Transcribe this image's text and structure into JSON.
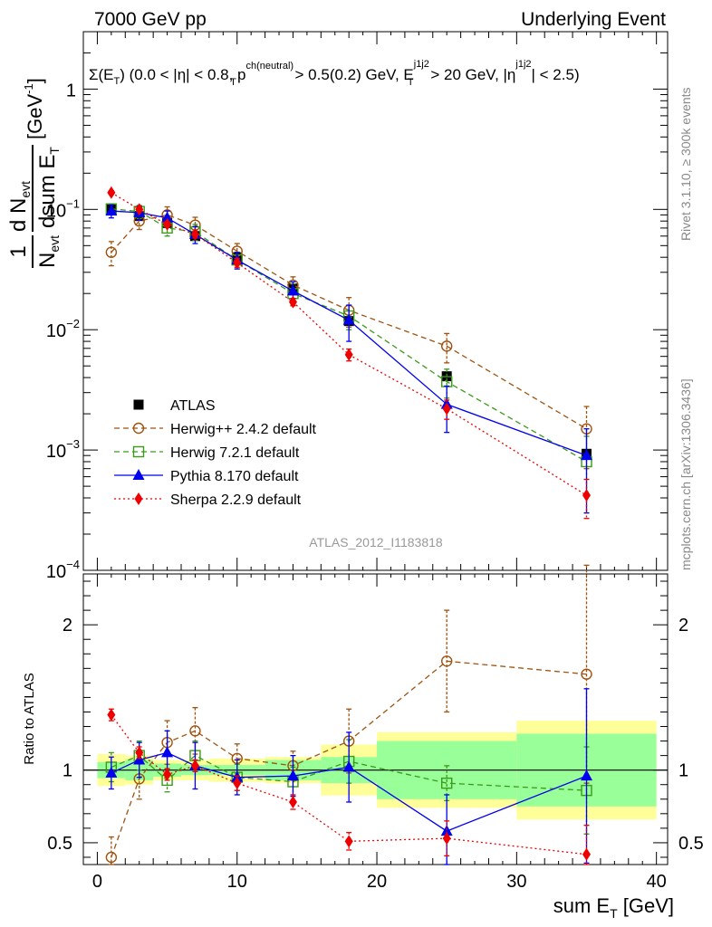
{
  "header": {
    "left": "7000 GeV pp",
    "right": "Underlying Event"
  },
  "side_labels": {
    "top": "Rivet 3.1.10, ≥ 300k events",
    "bottom": "mcplots.cern.ch [arXiv:1306.3436]"
  },
  "plot_label": "ATLAS_2012_I1183818",
  "cut_text": {
    "part1": "Σ(E",
    "sub_T1": "T",
    "part2": ") (0.0 < |η| < 0.8, p",
    "sup_ch": "ch(neutral)",
    "sub_T2": "T",
    "part3": " > 0.5(0.2) GeV, E",
    "sup_j1": "j1j2",
    "sub_T3": "T",
    "part4": " > 20 GeV, |η",
    "sup_j2": "j1j2",
    "part5": "| < 2.5)"
  },
  "axes": {
    "ylabel_num": "d N",
    "ylabel_num_sub": "evt",
    "ylabel_den": "dsum E",
    "ylabel_den_sub": "T",
    "ylabel_pre_num": "1",
    "ylabel_pre_den": "N",
    "ylabel_pre_den_sub": "evt",
    "ylabel_unit": "[GeV",
    "ylabel_unit_sup": "-1",
    "ylabel_unit_close": "]",
    "ratio_ylabel": "Ratio to ATLAS",
    "xlabel_main": "sum E",
    "xlabel_sub": "T",
    "xlabel_unit": " [GeV]"
  },
  "legend": [
    {
      "label": "ATLAS",
      "key": "atlas"
    },
    {
      "label": "Herwig++ 2.4.2 default",
      "key": "herwigpp"
    },
    {
      "label": "Herwig 7.2.1 default",
      "key": "herwig7"
    },
    {
      "label": "Pythia 8.170 default",
      "key": "pythia"
    },
    {
      "label": "Sherpa 2.2.9 default",
      "key": "sherpa"
    }
  ],
  "colors": {
    "atlas": "#000000",
    "herwigpp": "#a0520f",
    "herwig7": "#3a9a1a",
    "pythia": "#0000ee",
    "sherpa": "#ee0000",
    "band_inner": "#99ff99",
    "band_outer": "#ffff99"
  },
  "chart_data": [
    {
      "type": "scatter",
      "panel": "main",
      "x_edges": [
        0,
        2,
        4,
        6,
        8,
        12,
        16,
        20,
        30,
        40
      ],
      "x": [
        1,
        3,
        5,
        7,
        10,
        14,
        18,
        25,
        35
      ],
      "xlim": [
        -1,
        40.8
      ],
      "ylim": [
        0.0001,
        3
      ],
      "yscale": "log",
      "y_ticks": [
        {
          "v": 1,
          "base": "1",
          "exp": ""
        },
        {
          "v": 0.1,
          "base": "10",
          "exp": "−1"
        },
        {
          "v": 0.01,
          "base": "10",
          "exp": "−2"
        },
        {
          "v": 0.001,
          "base": "10",
          "exp": "−3"
        },
        {
          "v": 0.0001,
          "base": "10",
          "exp": "−4"
        }
      ],
      "series": [
        {
          "name": "ATLAS",
          "key": "atlas",
          "marker": "square-filled",
          "values": [
            0.1,
            0.088,
            0.077,
            0.06,
            0.04,
            0.022,
            0.0118,
            0.0041,
            0.00093
          ]
        },
        {
          "name": "Herwig++ 2.4.2 default",
          "key": "herwigpp",
          "marker": "circle-open",
          "line": "dashed",
          "values": [
            0.044,
            0.08,
            0.09,
            0.074,
            0.045,
            0.0235,
            0.0145,
            0.0073,
            0.0015
          ],
          "err": [
            0.01,
            0.012,
            0.015,
            0.012,
            0.007,
            0.004,
            0.004,
            0.002,
            0.0008
          ]
        },
        {
          "name": "Herwig 7.2.1 default",
          "key": "herwig7",
          "marker": "square-open",
          "line": "dashed",
          "values": [
            0.101,
            0.096,
            0.07,
            0.065,
            0.038,
            0.02,
            0.013,
            0.0037,
            0.0008
          ],
          "err": [
            0.01,
            0.012,
            0.01,
            0.01,
            0.006,
            0.004,
            0.003,
            0.001,
            0.0005
          ]
        },
        {
          "name": "Pythia 8.170 default",
          "key": "pythia",
          "marker": "triangle-filled",
          "line": "solid",
          "values": [
            0.097,
            0.094,
            0.085,
            0.062,
            0.038,
            0.021,
            0.012,
            0.0024,
            0.0009
          ],
          "err": [
            0.012,
            0.012,
            0.012,
            0.01,
            0.006,
            0.004,
            0.004,
            0.001,
            0.0006
          ]
        },
        {
          "name": "Sherpa 2.2.9 default",
          "key": "sherpa",
          "marker": "diamond-filled",
          "line": "dotted",
          "values": [
            0.138,
            0.1,
            0.075,
            0.062,
            0.036,
            0.017,
            0.0062,
            0.0022,
            0.00042
          ],
          "err": [
            0.005,
            0.004,
            0.004,
            0.004,
            0.003,
            0.0012,
            0.0007,
            0.0004,
            0.00015
          ]
        }
      ]
    },
    {
      "type": "scatter",
      "panel": "ratio",
      "xlabel": "sum E_T [GeV]",
      "ylabel": "Ratio to ATLAS",
      "x": [
        1,
        3,
        5,
        7,
        10,
        14,
        18,
        25,
        35
      ],
      "xlim": [
        -1,
        40.8
      ],
      "ylim": [
        0.35,
        2.35
      ],
      "x_ticks": [
        0,
        10,
        20,
        30,
        40
      ],
      "y_ticks": [
        0.5,
        1,
        2
      ],
      "band_inner": [
        0.055,
        0.07,
        0.045,
        0.035,
        0.035,
        0.07,
        0.09,
        0.2,
        0.25
      ],
      "band_outer": [
        0.11,
        0.1,
        0.07,
        0.07,
        0.08,
        0.09,
        0.175,
        0.26,
        0.34
      ],
      "series": [
        {
          "name": "Herwig++ 2.4.2 default",
          "key": "herwigpp",
          "values": [
            0.4,
            0.94,
            1.19,
            1.27,
            1.08,
            1.03,
            1.2,
            1.75,
            1.66
          ],
          "err": [
            0.14,
            0.14,
            0.15,
            0.16,
            0.1,
            0.1,
            0.22,
            0.35,
            0.75
          ]
        },
        {
          "name": "Herwig 7.2.1 default",
          "key": "herwig7",
          "values": [
            1.02,
            1.1,
            0.93,
            1.1,
            0.95,
            0.92,
            1.06,
            0.91,
            0.86
          ],
          "err": [
            0.1,
            0.1,
            0.08,
            0.1,
            0.09,
            0.1,
            0.15,
            0.12,
            0.3
          ]
        },
        {
          "name": "Pythia 8.170 default",
          "key": "pythia",
          "values": [
            0.98,
            1.07,
            1.12,
            1.03,
            0.95,
            0.96,
            1.02,
            0.58,
            0.96
          ],
          "err": [
            0.11,
            0.12,
            0.15,
            0.16,
            0.12,
            0.14,
            0.24,
            0.25,
            0.6
          ]
        },
        {
          "name": "Sherpa 2.2.9 default",
          "key": "sherpa",
          "values": [
            1.38,
            1.12,
            0.97,
            1.03,
            0.91,
            0.78,
            0.51,
            0.53,
            0.42
          ],
          "err": [
            0.04,
            0.04,
            0.04,
            0.04,
            0.05,
            0.05,
            0.06,
            0.12,
            0.2
          ]
        }
      ]
    }
  ]
}
